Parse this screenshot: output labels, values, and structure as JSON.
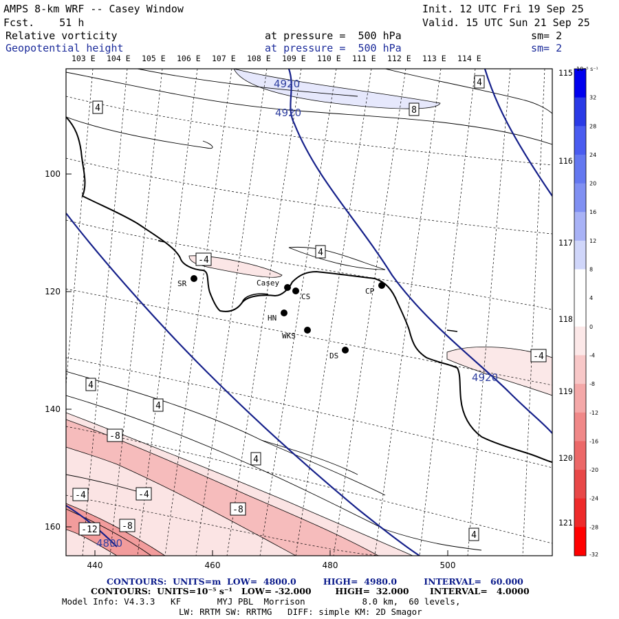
{
  "header": {
    "title": "AMPS 8-km WRF -- Casey Window",
    "fcst": "Fcst.    51 h",
    "init": "Init. 12 UTC Fri 19 Sep 25",
    "valid": "Valid. 15 UTC Sun 21 Sep 25",
    "field1": {
      "name": "Relative vorticity",
      "level": "at pressure =  500 hPa",
      "sm": "sm= 2"
    },
    "field2": {
      "name": "Geopotential height",
      "level": "at pressure =  500 hPa",
      "sm": "sm= 2"
    }
  },
  "map": {
    "lon_top_labels": [
      "103 E",
      "104 E",
      "105 E",
      "106 E",
      "107 E",
      "108 E",
      "109 E",
      "110 E",
      "111 E",
      "112 E",
      "113 E",
      "114 E"
    ],
    "lon_right_labels": [
      "115 E",
      "116 E",
      "117 E",
      "118 E",
      "119 E",
      "120 E",
      "121 E"
    ],
    "y_tick_labels": [
      "100",
      "120",
      "140",
      "160"
    ],
    "x_tick_labels": [
      "440",
      "460",
      "480",
      "500"
    ],
    "stations": [
      {
        "label": "SR"
      },
      {
        "label": "Casey"
      },
      {
        "label": "CS"
      },
      {
        "label": "CP"
      },
      {
        "label": "HN"
      },
      {
        "label": "WKS"
      },
      {
        "label": "DS"
      }
    ],
    "height_contour_labels": [
      "4920",
      "4920",
      "4920",
      "4800"
    ],
    "vorticity_labels": [
      "4",
      "4",
      "8",
      "-4",
      "4",
      "-4",
      "4",
      "4",
      "-8",
      "4",
      "-4",
      "-8",
      "-4",
      "-8",
      "-12",
      "4"
    ]
  },
  "colorbar": {
    "unit_label": "10⁻⁵ s⁻¹",
    "levels": [
      "32",
      "28",
      "24",
      "20",
      "16",
      "12",
      "8",
      "4",
      "0",
      "-4",
      "-8",
      "-12",
      "-16",
      "-20",
      "-24",
      "-28",
      "-32"
    ],
    "colors": [
      "#0000ee",
      "#2a3ae6",
      "#4a5cf0",
      "#6478f0",
      "#8090f2",
      "#a8b2f6",
      "#d0d6fa",
      "#ffffff",
      "#ffffff",
      "#fce8e8",
      "#f8c8c8",
      "#f4a8a8",
      "#f08888",
      "#ec6868",
      "#e84848",
      "#ee2a2a",
      "#ff0000"
    ]
  },
  "footer": {
    "line1": "CONTOURS:  UNITS=m  LOW=  4800.0         HIGH=  4980.0         INTERVAL=   60.000",
    "line2": "CONTOURS:  UNITS=10⁻⁵ s⁻¹   LOW= -32.000        HIGH=  32.000       INTERVAL=   4.0000",
    "line3": "Model Info: V4.3.3   KF       MYJ PBL  Morrison           8.0 km,  60 levels,",
    "line4": "LW: RRTM SW: RRTMG   DIFF: simple KM: 2D Smagor"
  }
}
